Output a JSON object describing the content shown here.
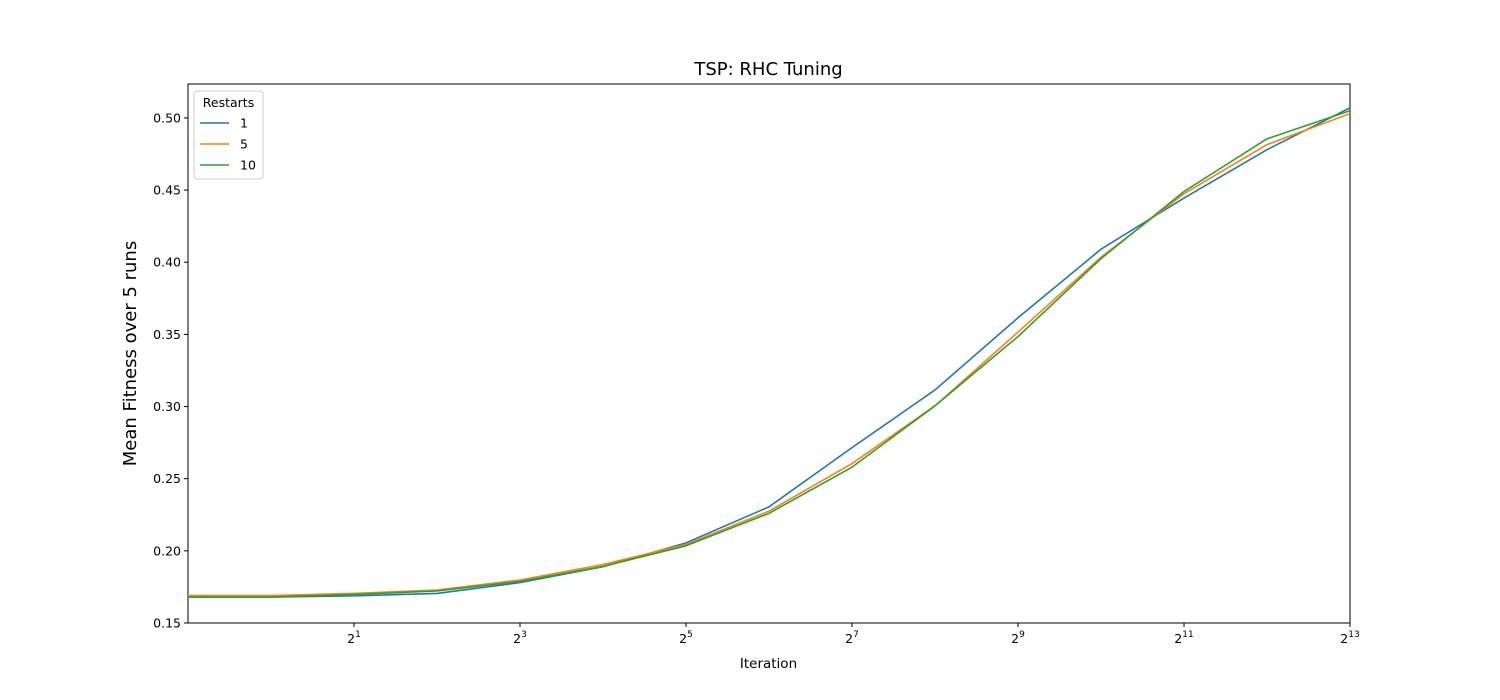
{
  "chart_data": {
    "type": "line",
    "title": "TSP: RHC Tuning",
    "xlabel": "Iteration",
    "ylabel": "Mean Fitness over 5 runs",
    "x_scale": "log2",
    "xlim": [
      0.5,
      8192
    ],
    "ylim": [
      0.15,
      0.5235
    ],
    "x_ticks": [
      2,
      8,
      32,
      128,
      512,
      2048,
      8192
    ],
    "x_tick_labels": [
      {
        "base": "2",
        "exp": "1"
      },
      {
        "base": "2",
        "exp": "3"
      },
      {
        "base": "2",
        "exp": "5"
      },
      {
        "base": "2",
        "exp": "7"
      },
      {
        "base": "2",
        "exp": "9"
      },
      {
        "base": "2",
        "exp": "11"
      },
      {
        "base": "2",
        "exp": "13"
      }
    ],
    "y_ticks": [
      "0.15",
      "0.20",
      "0.25",
      "0.30",
      "0.35",
      "0.40",
      "0.45",
      "0.50"
    ],
    "grid": false,
    "legend": {
      "title": "Restarts",
      "position": "top-left"
    },
    "x": [
      0.5,
      1,
      2,
      4,
      8,
      16,
      32,
      64,
      128,
      256,
      512,
      1024,
      2048,
      4096,
      8192
    ],
    "series": [
      {
        "name": "1",
        "color": "#1f77b4",
        "values": [
          0.168,
          0.168,
          0.1688,
          0.1705,
          0.178,
          0.189,
          0.2055,
          0.2305,
          0.2715,
          0.3115,
          0.3615,
          0.409,
          0.4445,
          0.478,
          0.507
        ]
      },
      {
        "name": "5",
        "color": "#ff7f0e",
        "values": [
          0.169,
          0.169,
          0.1705,
          0.1728,
          0.1798,
          0.1905,
          0.2045,
          0.2275,
          0.2605,
          0.3005,
          0.3515,
          0.4035,
          0.4475,
          0.4815,
          0.503
        ]
      },
      {
        "name": "10",
        "color": "#2ca02c",
        "values": [
          0.168,
          0.168,
          0.1698,
          0.1722,
          0.1788,
          0.1892,
          0.2035,
          0.226,
          0.258,
          0.3005,
          0.3485,
          0.4025,
          0.449,
          0.4855,
          0.505
        ]
      }
    ]
  }
}
